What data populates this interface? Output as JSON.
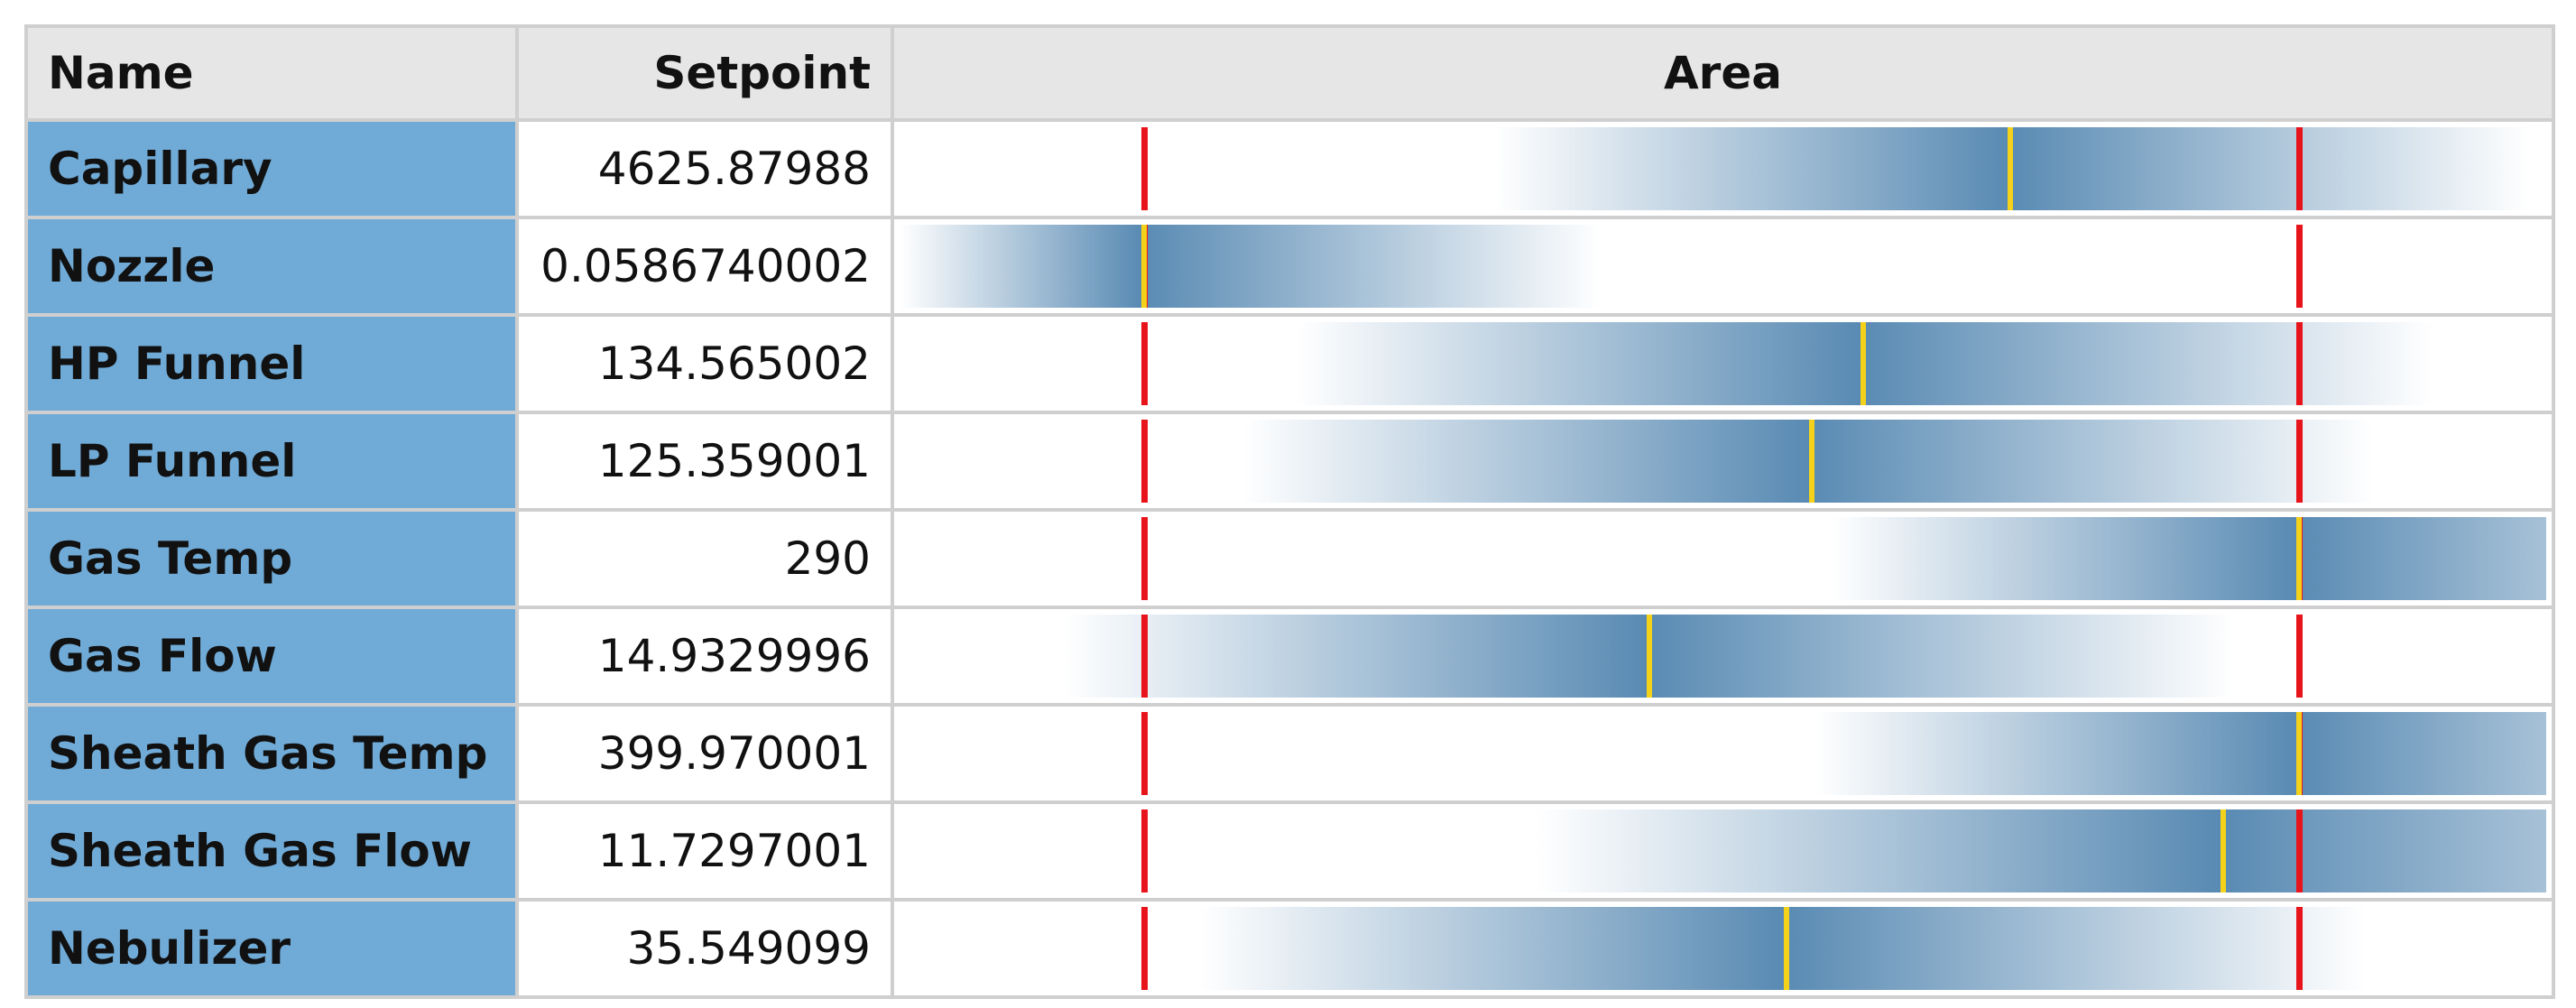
{
  "header": {
    "name": "Name",
    "setpoint": "Setpoint",
    "area": "Area"
  },
  "rows": [
    {
      "name": "Capillary",
      "setpoint": "4625.87988"
    },
    {
      "name": "Nozzle",
      "setpoint": "0.0586740002"
    },
    {
      "name": "HP Funnel",
      "setpoint": "134.565002"
    },
    {
      "name": "LP Funnel",
      "setpoint": "125.359001"
    },
    {
      "name": "Gas Temp",
      "setpoint": "290"
    },
    {
      "name": "Gas Flow",
      "setpoint": "14.9329996"
    },
    {
      "name": "Sheath Gas Temp",
      "setpoint": "399.970001"
    },
    {
      "name": "Sheath Gas Flow",
      "setpoint": "11.7297001"
    },
    {
      "name": "Nebulizer",
      "setpoint": "35.549099"
    }
  ]
}
